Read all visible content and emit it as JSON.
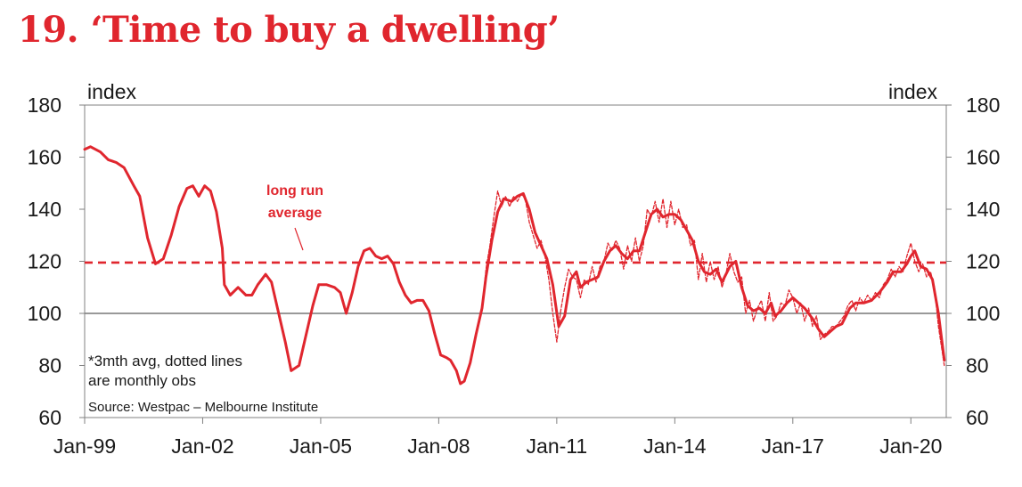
{
  "chart_data": {
    "type": "line",
    "title": "19. ‘Time to buy a dwelling’",
    "left_axis_label": "index",
    "right_axis_label": "index",
    "ylim": [
      60,
      180
    ],
    "y_ticks": [
      {
        "value": 60,
        "label": "60"
      },
      {
        "value": 80,
        "label": "80"
      },
      {
        "value": 100,
        "label": "100"
      },
      {
        "value": 120,
        "label": "120"
      },
      {
        "value": 140,
        "label": "140"
      },
      {
        "value": 160,
        "label": "160"
      },
      {
        "value": 180,
        "label": "180"
      }
    ],
    "xlim": [
      1999.0,
      2020.9
    ],
    "x_ticks": [
      {
        "value": 1999,
        "label": "Jan-99"
      },
      {
        "value": 2002,
        "label": "Jan-02"
      },
      {
        "value": 2005,
        "label": "Jan-05"
      },
      {
        "value": 2008,
        "label": "Jan-08"
      },
      {
        "value": 2011,
        "label": "Jan-11"
      },
      {
        "value": 2014,
        "label": "Jan-14"
      },
      {
        "value": 2017,
        "label": "Jan-17"
      },
      {
        "value": 2020,
        "label": "Jan-20"
      }
    ],
    "reference_line": {
      "name": "long run average",
      "value": 119.5
    },
    "annotation": [
      "long run",
      "average"
    ],
    "note_lines": [
      "*3mth avg, dotted lines",
      "are monthly obs"
    ],
    "source": "Source: Westpac – Melbourne Institute",
    "colors": {
      "series": "#e0262e",
      "axis": "#808080"
    },
    "series": [
      {
        "name": "3mth avg",
        "style": "solid",
        "points": [
          [
            1999.0,
            163
          ],
          [
            1999.15,
            164
          ],
          [
            1999.4,
            162
          ],
          [
            1999.6,
            159
          ],
          [
            1999.8,
            158
          ],
          [
            2000.0,
            156
          ],
          [
            2000.25,
            149
          ],
          [
            2000.4,
            145
          ],
          [
            2000.6,
            129
          ],
          [
            2000.8,
            119
          ],
          [
            2001.0,
            121
          ],
          [
            2001.2,
            130
          ],
          [
            2001.4,
            141
          ],
          [
            2001.6,
            148
          ],
          [
            2001.75,
            149
          ],
          [
            2001.9,
            145
          ],
          [
            2002.05,
            149
          ],
          [
            2002.2,
            147
          ],
          [
            2002.35,
            139
          ],
          [
            2002.5,
            125
          ],
          [
            2002.55,
            111
          ],
          [
            2002.7,
            107
          ],
          [
            2002.9,
            110
          ],
          [
            2003.1,
            107
          ],
          [
            2003.25,
            107
          ],
          [
            2003.4,
            111
          ],
          [
            2003.6,
            115
          ],
          [
            2003.75,
            112
          ],
          [
            2003.9,
            102
          ],
          [
            2004.1,
            89
          ],
          [
            2004.25,
            78
          ],
          [
            2004.45,
            80
          ],
          [
            2004.6,
            90
          ],
          [
            2004.8,
            103
          ],
          [
            2004.95,
            111
          ],
          [
            2005.15,
            111
          ],
          [
            2005.35,
            110
          ],
          [
            2005.5,
            108
          ],
          [
            2005.65,
            100
          ],
          [
            2005.8,
            108
          ],
          [
            2005.95,
            118
          ],
          [
            2006.1,
            124
          ],
          [
            2006.25,
            125
          ],
          [
            2006.4,
            122
          ],
          [
            2006.55,
            121
          ],
          [
            2006.7,
            122
          ],
          [
            2006.85,
            119
          ],
          [
            2007.0,
            112
          ],
          [
            2007.15,
            107
          ],
          [
            2007.3,
            104
          ],
          [
            2007.45,
            105
          ],
          [
            2007.6,
            105
          ],
          [
            2007.75,
            101
          ],
          [
            2007.9,
            92
          ],
          [
            2008.05,
            84
          ],
          [
            2008.2,
            83
          ],
          [
            2008.3,
            82
          ],
          [
            2008.45,
            78
          ],
          [
            2008.55,
            73
          ],
          [
            2008.65,
            74
          ],
          [
            2008.8,
            81
          ],
          [
            2008.95,
            92
          ],
          [
            2009.1,
            102
          ],
          [
            2009.2,
            114
          ],
          [
            2009.35,
            128
          ],
          [
            2009.5,
            139
          ],
          [
            2009.65,
            144
          ],
          [
            2009.85,
            143
          ],
          [
            2010.0,
            145
          ],
          [
            2010.15,
            146
          ],
          [
            2010.3,
            140
          ],
          [
            2010.45,
            131
          ],
          [
            2010.6,
            126
          ],
          [
            2010.75,
            121
          ],
          [
            2010.9,
            111
          ],
          [
            2011.05,
            95
          ],
          [
            2011.2,
            99
          ],
          [
            2011.35,
            113
          ],
          [
            2011.5,
            116
          ],
          [
            2011.6,
            110
          ],
          [
            2011.75,
            112
          ],
          [
            2011.9,
            113
          ],
          [
            2012.05,
            114
          ],
          [
            2012.2,
            120
          ],
          [
            2012.35,
            124
          ],
          [
            2012.5,
            126
          ],
          [
            2012.65,
            123
          ],
          [
            2012.8,
            121
          ],
          [
            2012.95,
            124
          ],
          [
            2013.1,
            124
          ],
          [
            2013.25,
            131
          ],
          [
            2013.4,
            138
          ],
          [
            2013.55,
            140
          ],
          [
            2013.7,
            137
          ],
          [
            2013.85,
            138
          ],
          [
            2014.0,
            138
          ],
          [
            2014.15,
            136
          ],
          [
            2014.3,
            132
          ],
          [
            2014.45,
            128
          ],
          [
            2014.6,
            120
          ],
          [
            2014.75,
            116
          ],
          [
            2014.9,
            115
          ],
          [
            2015.05,
            117
          ],
          [
            2015.2,
            112
          ],
          [
            2015.4,
            118
          ],
          [
            2015.55,
            120
          ],
          [
            2015.7,
            110
          ],
          [
            2015.85,
            103
          ],
          [
            2016.0,
            101
          ],
          [
            2016.15,
            102
          ],
          [
            2016.3,
            100
          ],
          [
            2016.45,
            104
          ],
          [
            2016.55,
            99
          ],
          [
            2016.7,
            101
          ],
          [
            2016.85,
            104
          ],
          [
            2017.0,
            106
          ],
          [
            2017.15,
            104
          ],
          [
            2017.3,
            102
          ],
          [
            2017.5,
            98
          ],
          [
            2017.65,
            94
          ],
          [
            2017.8,
            91
          ],
          [
            2017.95,
            93
          ],
          [
            2018.1,
            95
          ],
          [
            2018.25,
            96
          ],
          [
            2018.45,
            102
          ],
          [
            2018.6,
            104
          ],
          [
            2018.8,
            104
          ],
          [
            2019.0,
            105
          ],
          [
            2019.2,
            108
          ],
          [
            2019.4,
            112
          ],
          [
            2019.55,
            116
          ],
          [
            2019.75,
            116
          ],
          [
            2019.9,
            119
          ],
          [
            2020.0,
            122
          ],
          [
            2020.1,
            124
          ],
          [
            2020.25,
            118
          ],
          [
            2020.4,
            117
          ],
          [
            2020.55,
            113
          ],
          [
            2020.7,
            100
          ],
          [
            2020.85,
            82
          ]
        ]
      },
      {
        "name": "monthly obs",
        "style": "dotted",
        "points": [
          [
            2009.1,
            101
          ],
          [
            2009.2,
            117
          ],
          [
            2009.3,
            126
          ],
          [
            2009.4,
            137
          ],
          [
            2009.5,
            147
          ],
          [
            2009.6,
            141
          ],
          [
            2009.7,
            145
          ],
          [
            2009.8,
            141
          ],
          [
            2009.9,
            145
          ],
          [
            2010.0,
            143
          ],
          [
            2010.1,
            146
          ],
          [
            2010.2,
            144
          ],
          [
            2010.3,
            135
          ],
          [
            2010.4,
            130
          ],
          [
            2010.5,
            125
          ],
          [
            2010.6,
            128
          ],
          [
            2010.7,
            122
          ],
          [
            2010.8,
            113
          ],
          [
            2010.9,
            100
          ],
          [
            2011.0,
            89
          ],
          [
            2011.1,
            101
          ],
          [
            2011.2,
            110
          ],
          [
            2011.3,
            117
          ],
          [
            2011.4,
            114
          ],
          [
            2011.5,
            113
          ],
          [
            2011.6,
            106
          ],
          [
            2011.7,
            113
          ],
          [
            2011.8,
            111
          ],
          [
            2011.9,
            118
          ],
          [
            2012.0,
            112
          ],
          [
            2012.1,
            118
          ],
          [
            2012.2,
            120
          ],
          [
            2012.3,
            127
          ],
          [
            2012.4,
            124
          ],
          [
            2012.5,
            128
          ],
          [
            2012.6,
            125
          ],
          [
            2012.7,
            117
          ],
          [
            2012.8,
            126
          ],
          [
            2012.9,
            120
          ],
          [
            2013.0,
            129
          ],
          [
            2013.1,
            120
          ],
          [
            2013.2,
            126
          ],
          [
            2013.3,
            140
          ],
          [
            2013.4,
            137
          ],
          [
            2013.5,
            143
          ],
          [
            2013.6,
            135
          ],
          [
            2013.7,
            144
          ],
          [
            2013.8,
            133
          ],
          [
            2013.9,
            143
          ],
          [
            2014.0,
            134
          ],
          [
            2014.1,
            140
          ],
          [
            2014.2,
            133
          ],
          [
            2014.3,
            134
          ],
          [
            2014.4,
            126
          ],
          [
            2014.5,
            128
          ],
          [
            2014.6,
            113
          ],
          [
            2014.7,
            123
          ],
          [
            2014.8,
            112
          ],
          [
            2014.9,
            120
          ],
          [
            2015.0,
            113
          ],
          [
            2015.1,
            118
          ],
          [
            2015.2,
            110
          ],
          [
            2015.3,
            115
          ],
          [
            2015.4,
            123
          ],
          [
            2015.5,
            116
          ],
          [
            2015.6,
            112
          ],
          [
            2015.7,
            114
          ],
          [
            2015.8,
            100
          ],
          [
            2015.9,
            105
          ],
          [
            2016.0,
            97
          ],
          [
            2016.1,
            102
          ],
          [
            2016.2,
            105
          ],
          [
            2016.3,
            97
          ],
          [
            2016.4,
            108
          ],
          [
            2016.5,
            97
          ],
          [
            2016.6,
            99
          ],
          [
            2016.7,
            104
          ],
          [
            2016.8,
            103
          ],
          [
            2016.9,
            109
          ],
          [
            2017.0,
            106
          ],
          [
            2017.1,
            100
          ],
          [
            2017.2,
            104
          ],
          [
            2017.3,
            97
          ],
          [
            2017.4,
            102
          ],
          [
            2017.5,
            95
          ],
          [
            2017.6,
            99
          ],
          [
            2017.7,
            90
          ],
          [
            2017.8,
            92
          ],
          [
            2017.9,
            93
          ],
          [
            2018.0,
            95
          ],
          [
            2018.1,
            95
          ],
          [
            2018.2,
            97
          ],
          [
            2018.3,
            99
          ],
          [
            2018.4,
            103
          ],
          [
            2018.5,
            105
          ],
          [
            2018.6,
            101
          ],
          [
            2018.7,
            106
          ],
          [
            2018.8,
            104
          ],
          [
            2018.9,
            107
          ],
          [
            2019.0,
            105
          ],
          [
            2019.1,
            108
          ],
          [
            2019.2,
            106
          ],
          [
            2019.3,
            111
          ],
          [
            2019.4,
            113
          ],
          [
            2019.5,
            117
          ],
          [
            2019.6,
            114
          ],
          [
            2019.7,
            118
          ],
          [
            2019.8,
            116
          ],
          [
            2019.9,
            122
          ],
          [
            2020.0,
            127
          ],
          [
            2020.1,
            120
          ],
          [
            2020.2,
            116
          ],
          [
            2020.3,
            119
          ],
          [
            2020.4,
            114
          ],
          [
            2020.5,
            116
          ],
          [
            2020.6,
            110
          ],
          [
            2020.7,
            95
          ],
          [
            2020.85,
            80
          ]
        ]
      }
    ]
  }
}
